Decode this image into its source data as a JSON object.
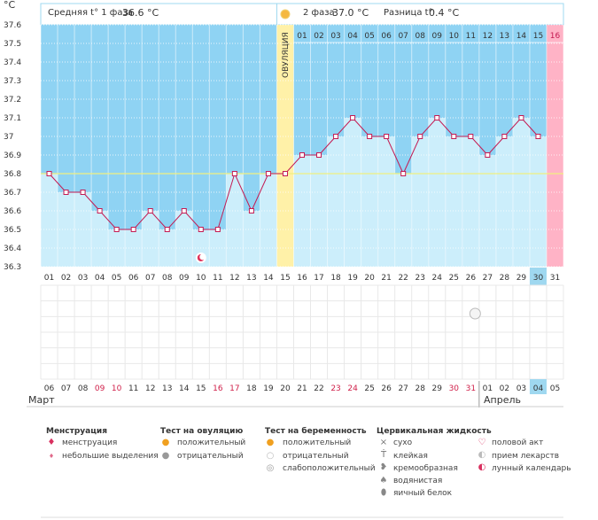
{
  "header": {
    "unit": "°C",
    "phase1_label": "Средняя t° 1 фаза",
    "phase1_value": "36.6 °C",
    "phase2_label": "2 фаза",
    "phase2_value": "37.0 °C",
    "diff_label": "Разница t°",
    "diff_value": "0.4 °C",
    "ovulation_label": "ОВУЛЯЦИЯ"
  },
  "chart_data": {
    "type": "line",
    "ylim": [
      36.3,
      37.6
    ],
    "y_ticks": [
      "36.3",
      "36.4",
      "36.5",
      "36.6",
      "36.7",
      "36.8",
      "36.9",
      "37",
      "37.1",
      "37.2",
      "37.3",
      "37.4",
      "37.5",
      "37.6"
    ],
    "cycle_days_top": [
      "01",
      "02",
      "03",
      "04",
      "05",
      "06",
      "07",
      "08",
      "09",
      "10",
      "11",
      "12",
      "13",
      "14",
      "15",
      "16"
    ],
    "cycle_days_bottom": [
      "01",
      "02",
      "03",
      "04",
      "05",
      "06",
      "07",
      "08",
      "09",
      "10",
      "11",
      "12",
      "13",
      "14",
      "15",
      "16",
      "17",
      "18",
      "19",
      "20",
      "21",
      "22",
      "23",
      "24",
      "25",
      "26",
      "27",
      "28",
      "29",
      "30",
      "31"
    ],
    "calendar_dates": [
      "06",
      "07",
      "08",
      "09",
      "10",
      "11",
      "12",
      "13",
      "14",
      "15",
      "16",
      "17",
      "18",
      "19",
      "20",
      "21",
      "22",
      "23",
      "24",
      "25",
      "26",
      "27",
      "28",
      "29",
      "30",
      "31",
      "01",
      "02",
      "03",
      "04",
      "05"
    ],
    "weekend_dates_idx": [
      3,
      4,
      10,
      11,
      17,
      18,
      24,
      25
    ],
    "temperatures": [
      36.8,
      36.7,
      36.7,
      36.6,
      36.5,
      36.5,
      36.6,
      36.5,
      36.6,
      36.5,
      36.5,
      36.8,
      36.6,
      36.8,
      36.8,
      36.9,
      36.9,
      37.0,
      37.1,
      37.0,
      37.0,
      36.8,
      37.0,
      37.1,
      37.0,
      37.0,
      36.9,
      37.0,
      37.1,
      37.0
    ],
    "coverline": 36.8,
    "ovulation_day": 15,
    "highlight_bottom": "30",
    "highlight_date": "04"
  },
  "months": {
    "left": "Март",
    "right": "Апрель"
  },
  "legend": {
    "menstruation": {
      "title": "Менструация",
      "items": [
        "менструация",
        "небольшие выделения"
      ]
    },
    "ovulation_test": {
      "title": "Тест на овуляцию",
      "items": [
        "положительный",
        "отрицательный"
      ]
    },
    "pregnancy_test": {
      "title": "Тест на беременность",
      "items": [
        "положительный",
        "отрицательный",
        "слабоположительный"
      ]
    },
    "cervical": {
      "title": "Цервикальная жидкость",
      "items": [
        "сухо",
        "клейкая",
        "кремообразная",
        "водянистая",
        "яичный белок"
      ]
    },
    "other": {
      "items": [
        "половой акт",
        "прием лекарств",
        "лунный календарь"
      ]
    }
  },
  "colors": {
    "sky": "#8fd3f3",
    "bar": "#cceefb",
    "ovulation": "#fff1a8",
    "menses_col": "#ffb3c6",
    "line": "#c41a52",
    "cover": "#f0f080"
  }
}
